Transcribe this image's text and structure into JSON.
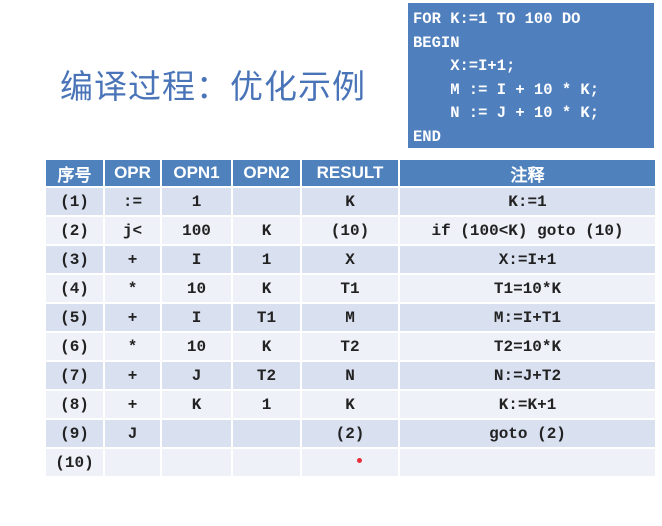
{
  "title": "编译过程：优化示例",
  "code": [
    "FOR K:=1 TO 100 DO",
    "BEGIN",
    "    X:=I+1;",
    "    M := I + 10 * K;",
    "    N := J + 10 * K;",
    "END"
  ],
  "table": {
    "headers": [
      "序号",
      "OPR",
      "OPN1",
      "OPN2",
      "RESULT",
      "注释"
    ],
    "rows": [
      [
        "(1)",
        ":=",
        "1",
        "",
        "K",
        "K:=1"
      ],
      [
        "(2)",
        "j<",
        "100",
        "K",
        "(10)",
        "if (100<K) goto (10)"
      ],
      [
        "(3)",
        "+",
        "I",
        "1",
        "X",
        "X:=I+1"
      ],
      [
        "(4)",
        "*",
        "10",
        "K",
        "T1",
        "T1=10*K"
      ],
      [
        "(5)",
        "+",
        "I",
        "T1",
        "M",
        "M:=I+T1"
      ],
      [
        "(6)",
        "*",
        "10",
        "K",
        "T2",
        "T2=10*K"
      ],
      [
        "(7)",
        "+",
        "J",
        "T2",
        "N",
        "N:=J+T2"
      ],
      [
        "(8)",
        "+",
        "K",
        "1",
        "K",
        "K:=K+1"
      ],
      [
        "(9)",
        "J",
        "",
        "",
        "(2)",
        "goto (2)"
      ],
      [
        "(10)",
        "",
        "",
        "",
        "",
        ""
      ]
    ]
  },
  "colors": {
    "accent": "#4f81bd",
    "row_dark": "#d9e0f0",
    "row_light": "#eef1f8",
    "title": "#4a74b8"
  }
}
